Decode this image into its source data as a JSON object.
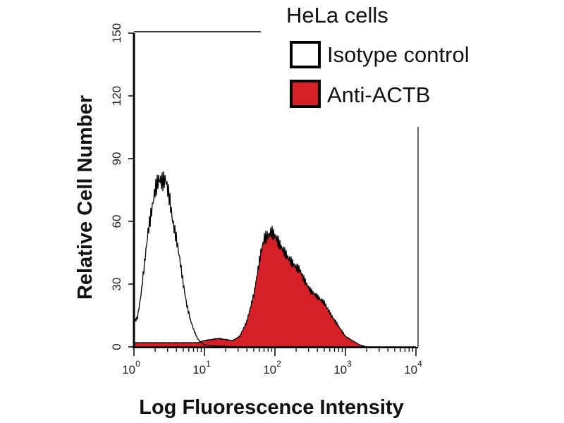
{
  "chart_data": {
    "type": "area",
    "title": "HeLa cells",
    "xlabel": "Log Fluorescence Intensity",
    "ylabel": "Relative Cell Number",
    "xscale": "log",
    "xlim_log10": [
      0,
      4
    ],
    "ylim": [
      0,
      150
    ],
    "xticks": [
      {
        "base": "10",
        "exp": "0"
      },
      {
        "base": "10",
        "exp": "1"
      },
      {
        "base": "10",
        "exp": "2"
      },
      {
        "base": "10",
        "exp": "3"
      },
      {
        "base": "10",
        "exp": "4"
      }
    ],
    "yticks": [
      "0",
      "30",
      "60",
      "90",
      "120",
      "150"
    ],
    "legend_position": "top-right",
    "series": [
      {
        "name": "Isotype control",
        "fill": "none",
        "stroke": "#000000",
        "log10_x": [
          0.0,
          0.05,
          0.1,
          0.15,
          0.2,
          0.25,
          0.3,
          0.35,
          0.4,
          0.45,
          0.5,
          0.55,
          0.6,
          0.65,
          0.7,
          0.75,
          0.8,
          0.85,
          0.9,
          0.95,
          1.0,
          1.1,
          1.5,
          4.0
        ],
        "y": [
          12,
          14,
          25,
          40,
          55,
          65,
          75,
          80,
          79,
          80,
          72,
          60,
          52,
          42,
          30,
          20,
          13,
          8,
          4,
          2,
          1,
          0.5,
          0,
          0
        ]
      },
      {
        "name": "Anti-ACTB",
        "fill": "#d42027",
        "stroke": "#000000",
        "log10_x": [
          0.0,
          0.5,
          0.9,
          1.0,
          1.2,
          1.4,
          1.5,
          1.6,
          1.7,
          1.75,
          1.8,
          1.85,
          1.9,
          1.95,
          2.0,
          2.05,
          2.1,
          2.2,
          2.3,
          2.35,
          2.4,
          2.5,
          2.6,
          2.7,
          2.8,
          2.9,
          3.0,
          3.1,
          3.2,
          3.3,
          4.0
        ],
        "y": [
          2,
          2,
          2,
          3,
          4,
          3,
          5,
          12,
          25,
          35,
          45,
          52,
          53,
          55,
          53,
          50,
          47,
          42,
          38,
          37,
          33,
          27,
          24,
          21,
          15,
          10,
          5,
          3,
          1,
          0,
          0
        ]
      }
    ]
  }
}
